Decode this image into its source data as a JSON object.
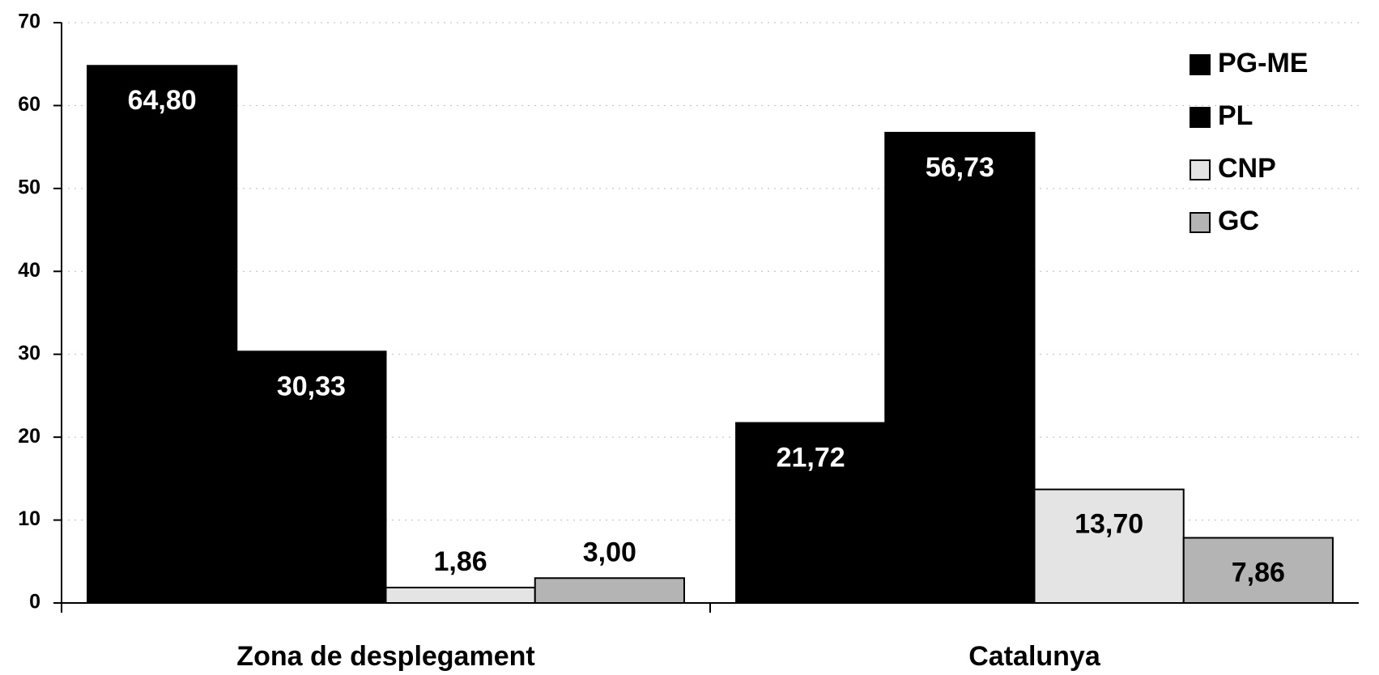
{
  "chart_data": {
    "type": "bar",
    "categories": [
      "Zona de desplegament",
      "Catalunya"
    ],
    "series": [
      {
        "name": "PG-ME",
        "color": "#000000",
        "values": [
          64.8,
          21.72
        ],
        "value_labels": [
          "64,80",
          "21,72"
        ]
      },
      {
        "name": "PL",
        "color": "#000000",
        "values": [
          30.33,
          56.73
        ],
        "value_labels": [
          "30,33",
          "56,73"
        ]
      },
      {
        "name": "CNP",
        "color": "#e4e4e4",
        "values": [
          1.86,
          13.7
        ],
        "value_labels": [
          "1,86",
          "13,70"
        ]
      },
      {
        "name": "GC",
        "color": "#b4b4b4",
        "values": [
          3.0,
          7.86
        ],
        "value_labels": [
          "3,00",
          "7,86"
        ]
      }
    ],
    "ylim": [
      0,
      70
    ],
    "yticks": [
      0,
      10,
      20,
      30,
      40,
      50,
      60,
      70
    ],
    "grid": true,
    "legend": "top-right"
  }
}
